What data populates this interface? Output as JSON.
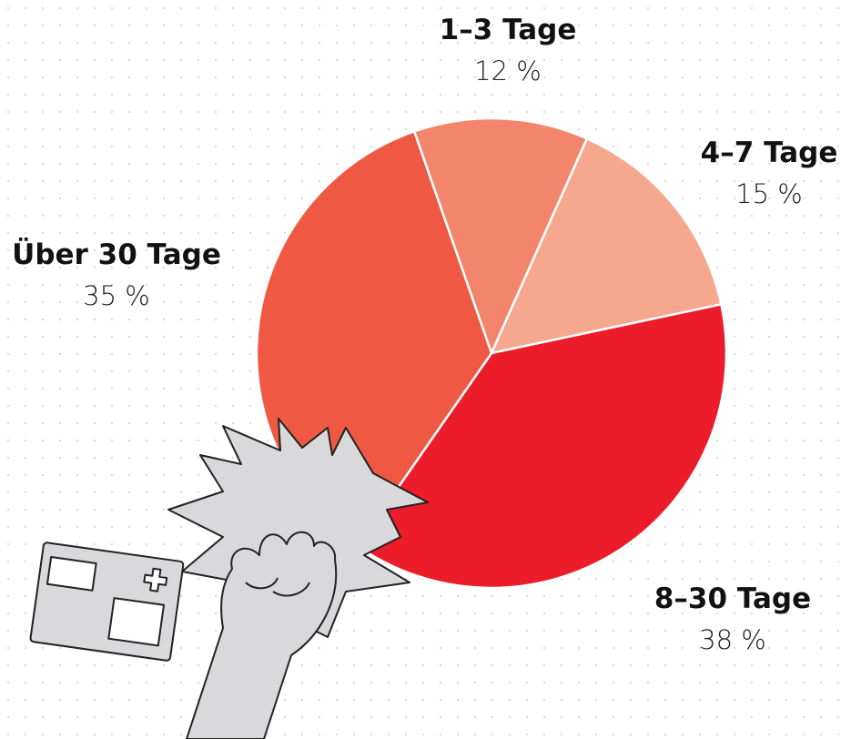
{
  "chart_data": {
    "type": "pie",
    "categories": [
      "1–3 Tage",
      "4–7 Tage",
      "8–30 Tage",
      "Über 30 Tage"
    ],
    "values": [
      12,
      15,
      38,
      35
    ],
    "value_labels": [
      "12 %",
      "15 %",
      "38 %",
      "35 %"
    ],
    "colors": [
      "#f2856c",
      "#f5a88e",
      "#ec1c2a",
      "#ef5944"
    ]
  }
}
